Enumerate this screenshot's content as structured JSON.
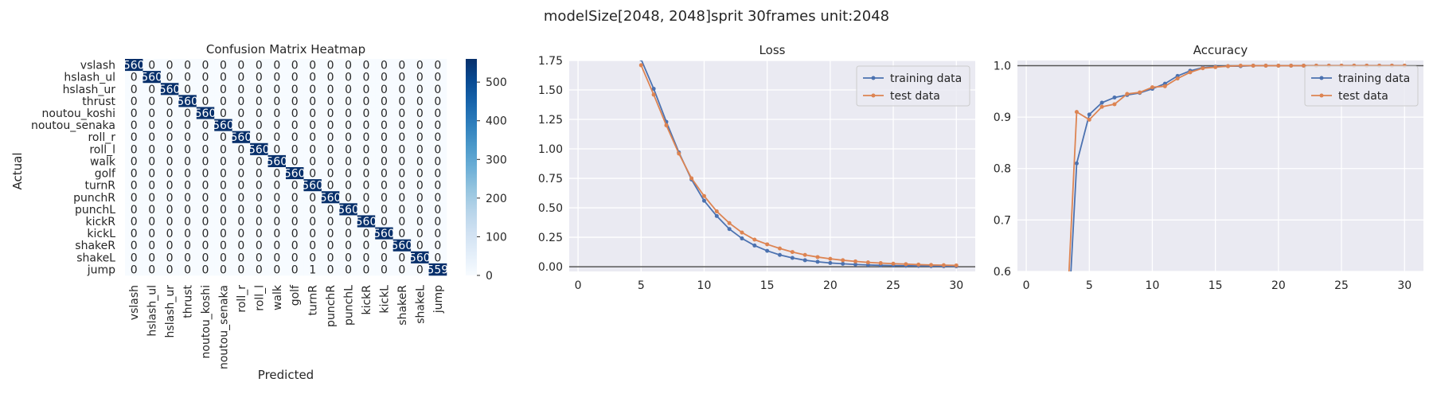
{
  "figure": {
    "suptitle": "modelSize[2048, 2048]sprit 30frames unit:2048"
  },
  "chart_data": [
    {
      "type": "heatmap",
      "title": "Confusion Matrix Heatmap",
      "xlabel": "Predicted",
      "ylabel": "Actual",
      "labels": [
        "vslash",
        "hslash_ul",
        "hslash_ur",
        "thrust",
        "noutou_koshi",
        "noutou_senaka",
        "roll_r",
        "roll_l",
        "walk",
        "golf",
        "turnR",
        "punchR",
        "punchL",
        "kickR",
        "kickL",
        "shakeR",
        "shakeL",
        "jump"
      ],
      "diagonal": [
        560,
        560,
        560,
        560,
        560,
        560,
        560,
        560,
        560,
        560,
        560,
        560,
        560,
        560,
        560,
        560,
        560,
        559
      ],
      "off_diagonal": [
        {
          "actual": "jump",
          "predicted": "turnR",
          "value": 1
        }
      ],
      "colormap": "Blues",
      "colorbar": {
        "range": [
          0,
          560
        ],
        "ticks": [
          0,
          100,
          200,
          300,
          400,
          500
        ]
      }
    },
    {
      "type": "line",
      "title": "Loss",
      "x_ticks": [
        0,
        5,
        10,
        15,
        20,
        25,
        30
      ],
      "y_ticks": [
        0.0,
        0.25,
        0.5,
        0.75,
        1.0,
        1.25,
        1.5,
        1.75
      ],
      "xlim": [
        -0.7,
        31.5
      ],
      "ylim": [
        -0.04,
        1.75
      ],
      "hline": 0,
      "legend": "top-right",
      "grid": true,
      "series": [
        {
          "name": "training data",
          "color": "#4c72b0",
          "x": [
            5,
            6,
            7,
            8,
            9,
            10,
            11,
            12,
            13,
            14,
            15,
            16,
            17,
            18,
            19,
            20,
            21,
            22,
            23,
            24,
            25,
            26,
            27,
            28,
            29,
            30
          ],
          "y": [
            1.76,
            1.51,
            1.23,
            0.97,
            0.74,
            0.56,
            0.43,
            0.32,
            0.24,
            0.18,
            0.135,
            0.1,
            0.075,
            0.055,
            0.042,
            0.032,
            0.025,
            0.019,
            0.015,
            0.012,
            0.01,
            0.008,
            0.007,
            0.006,
            0.005,
            0.004
          ]
        },
        {
          "name": "test data",
          "color": "#dd8452",
          "x": [
            5,
            6,
            7,
            8,
            9,
            10,
            11,
            12,
            13,
            14,
            15,
            16,
            17,
            18,
            19,
            20,
            21,
            22,
            23,
            24,
            25,
            26,
            27,
            28,
            29,
            30
          ],
          "y": [
            1.71,
            1.46,
            1.2,
            0.96,
            0.75,
            0.6,
            0.47,
            0.37,
            0.29,
            0.23,
            0.19,
            0.155,
            0.125,
            0.1,
            0.082,
            0.067,
            0.055,
            0.045,
            0.037,
            0.031,
            0.026,
            0.022,
            0.018,
            0.015,
            0.013,
            0.011
          ]
        }
      ]
    },
    {
      "type": "line",
      "title": "Accuracy",
      "x_ticks": [
        0,
        5,
        10,
        15,
        20,
        25,
        30
      ],
      "y_ticks": [
        0.6,
        0.7,
        0.8,
        0.9,
        1.0
      ],
      "xlim": [
        -0.7,
        31.5
      ],
      "ylim": [
        0.6,
        1.01
      ],
      "hline": 1.0,
      "legend": "top-right",
      "grid": true,
      "series": [
        {
          "name": "training data",
          "color": "#4c72b0",
          "x": [
            3,
            4,
            5,
            6,
            7,
            8,
            9,
            10,
            11,
            12,
            13,
            14,
            15,
            16,
            17,
            18,
            19,
            20,
            21,
            22,
            23,
            24,
            25,
            26,
            27,
            28,
            29,
            30
          ],
          "y": [
            0.35,
            0.81,
            0.905,
            0.928,
            0.938,
            0.943,
            0.947,
            0.955,
            0.965,
            0.98,
            0.99,
            0.996,
            0.998,
            0.999,
            0.999,
            1.0,
            1.0,
            1.0,
            1.0,
            1.0,
            1.0,
            1.0,
            1.0,
            1.0,
            1.0,
            1.0,
            1.0,
            1.0
          ]
        },
        {
          "name": "test data",
          "color": "#dd8452",
          "x": [
            3,
            4,
            5,
            6,
            7,
            8,
            9,
            10,
            11,
            12,
            13,
            14,
            15,
            16,
            17,
            18,
            19,
            20,
            21,
            22,
            23,
            24,
            25,
            26,
            27,
            28,
            29,
            30
          ],
          "y": [
            0.4,
            0.91,
            0.895,
            0.92,
            0.925,
            0.945,
            0.948,
            0.958,
            0.96,
            0.975,
            0.987,
            0.995,
            0.997,
            0.999,
            1.0,
            1.0,
            1.0,
            1.0,
            1.0,
            1.0,
            1.0,
            1.0,
            1.0,
            1.0,
            1.0,
            1.0,
            1.0,
            1.0
          ]
        }
      ]
    }
  ]
}
